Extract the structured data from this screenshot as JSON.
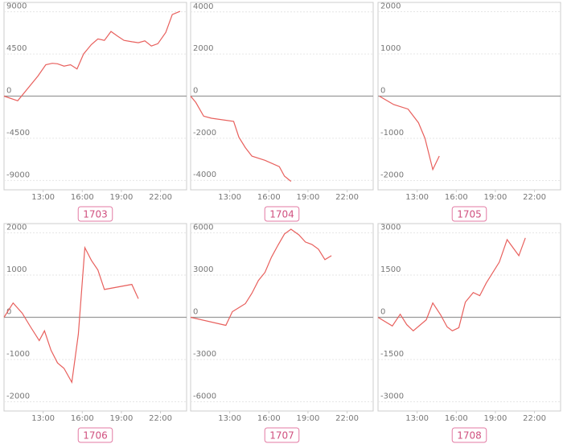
{
  "chart_data": [
    {
      "type": "line",
      "title": "1703",
      "color": "#e8605d",
      "grid": true,
      "x": [
        10.0,
        11.05,
        12.6,
        13.2,
        13.7,
        14.1,
        14.6,
        15.1,
        15.6,
        16.1,
        16.7,
        17.2,
        17.7,
        18.2,
        18.7,
        19.2,
        19.8,
        20.3,
        20.8,
        21.3,
        21.8,
        22.4,
        22.9,
        23.5
      ],
      "values": [
        0,
        -500,
        2150,
        3350,
        3500,
        3450,
        3200,
        3350,
        2900,
        4500,
        5500,
        6100,
        5950,
        6900,
        6400,
        5950,
        5800,
        5700,
        5900,
        5350,
        5600,
        6800,
        8700,
        9050
      ],
      "xlim": [
        10,
        24
      ],
      "xticks": [
        {
          "value": 13,
          "label": "13:00"
        },
        {
          "value": 16,
          "label": "16:00"
        },
        {
          "value": 19,
          "label": "19:00"
        },
        {
          "value": 22,
          "label": "22:00"
        }
      ],
      "ylim": [
        -10000,
        10000
      ],
      "yticks": [
        9000,
        4500,
        0,
        -4500,
        -9000
      ]
    },
    {
      "type": "line",
      "title": "1704",
      "color": "#e8605d",
      "grid": true,
      "x": [
        10.0,
        10.4,
        11.0,
        11.6,
        13.3,
        13.7,
        14.2,
        14.7,
        15.7,
        16.8,
        17.2,
        17.7
      ],
      "values": [
        0,
        -300,
        -950,
        -1050,
        -1200,
        -1950,
        -2450,
        -2850,
        -3050,
        -3350,
        -3800,
        -4050
      ],
      "xlim": [
        10,
        24
      ],
      "xticks": [
        {
          "value": 13,
          "label": "13:00"
        },
        {
          "value": 16,
          "label": "16:00"
        },
        {
          "value": 19,
          "label": "19:00"
        },
        {
          "value": 22,
          "label": "22:00"
        }
      ],
      "ylim": [
        -4450,
        4450
      ],
      "yticks": [
        4000,
        2000,
        0,
        -2000,
        -4000
      ]
    },
    {
      "type": "line",
      "title": "1705",
      "color": "#e8605d",
      "grid": true,
      "x": [
        10.1,
        11.2,
        12.3,
        13.1,
        13.6,
        14.2,
        14.7
      ],
      "values": [
        0,
        -200,
        -306,
        -630,
        -1000,
        -1740,
        -1420
      ],
      "xlim": [
        10,
        24
      ],
      "xticks": [
        {
          "value": 13,
          "label": "13:00"
        },
        {
          "value": 16,
          "label": "16:00"
        },
        {
          "value": 19,
          "label": "19:00"
        },
        {
          "value": 22,
          "label": "22:00"
        }
      ],
      "ylim": [
        -2220,
        2220
      ],
      "yticks": [
        2000,
        1000,
        0,
        -1000,
        -2000
      ]
    },
    {
      "type": "line",
      "title": "1706",
      "color": "#e8605d",
      "grid": true,
      "x": [
        10.0,
        10.7,
        11.4,
        12.0,
        12.7,
        13.1,
        13.6,
        14.1,
        14.6,
        15.2,
        15.7,
        16.2,
        16.7,
        17.2,
        17.7,
        19.8,
        20.3
      ],
      "values": [
        0,
        340,
        95,
        -210,
        -550,
        -320,
        -780,
        -1080,
        -1210,
        -1540,
        -400,
        1650,
        1350,
        1120,
        660,
        780,
        440
      ],
      "xlim": [
        10,
        24
      ],
      "xticks": [
        {
          "value": 13,
          "label": "13:00"
        },
        {
          "value": 16,
          "label": "16:00"
        },
        {
          "value": 19,
          "label": "19:00"
        },
        {
          "value": 22,
          "label": "22:00"
        }
      ],
      "ylim": [
        -2220,
        2220
      ],
      "yticks": [
        2000,
        1000,
        0,
        -1000,
        -2000
      ]
    },
    {
      "type": "line",
      "title": "1707",
      "color": "#e8605d",
      "grid": true,
      "x": [
        10.0,
        12.7,
        13.2,
        14.2,
        14.7,
        15.2,
        15.7,
        16.2,
        16.7,
        17.2,
        17.7,
        18.3,
        18.8,
        19.3,
        19.8,
        20.3,
        20.8
      ],
      "values": [
        0,
        -570,
        400,
        970,
        1710,
        2620,
        3190,
        4270,
        5120,
        5920,
        6260,
        5860,
        5350,
        5180,
        4840,
        4100,
        4380
      ],
      "xlim": [
        10,
        24
      ],
      "xticks": [
        {
          "value": 13,
          "label": "13:00"
        },
        {
          "value": 16,
          "label": "16:00"
        },
        {
          "value": 19,
          "label": "19:00"
        },
        {
          "value": 22,
          "label": "22:00"
        }
      ],
      "ylim": [
        -6660,
        6660
      ],
      "yticks": [
        6000,
        3000,
        0,
        -3000,
        -6000
      ]
    },
    {
      "type": "line",
      "title": "1708",
      "color": "#e8605d",
      "grid": true,
      "x": [
        10.0,
        11.1,
        11.7,
        12.2,
        12.7,
        13.7,
        14.2,
        14.8,
        15.3,
        15.7,
        16.2,
        16.7,
        17.3,
        17.8,
        18.3,
        19.3,
        19.9,
        20.8,
        21.3
      ],
      "values": [
        0,
        -310,
        110,
        -260,
        -480,
        -90,
        510,
        90,
        -340,
        -480,
        -370,
        540,
        880,
        770,
        1220,
        1960,
        2760,
        2190,
        2820
      ],
      "xlim": [
        10,
        24
      ],
      "xticks": [
        {
          "value": 13,
          "label": "13:00"
        },
        {
          "value": 16,
          "label": "16:00"
        },
        {
          "value": 19,
          "label": "19:00"
        },
        {
          "value": 22,
          "label": "22:00"
        }
      ],
      "ylim": [
        -3330,
        3330
      ],
      "yticks": [
        3000,
        1500,
        0,
        -1500,
        -3000
      ]
    }
  ]
}
